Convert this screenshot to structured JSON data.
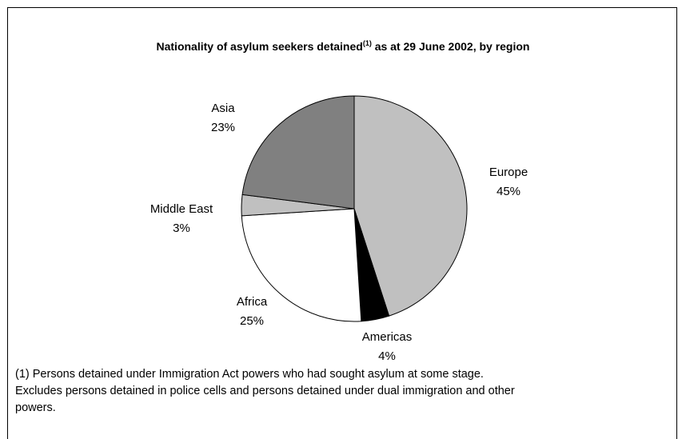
{
  "chart_data": {
    "type": "pie",
    "title": "Nationality of asylum seekers detained",
    "title_superscript": "(1)",
    "title_suffix": " as at 29 June 2002, by region",
    "slices": [
      {
        "label": "Europe",
        "value": 45,
        "value_label": "45%",
        "color": "#c0c0c0"
      },
      {
        "label": "Americas",
        "value": 4,
        "value_label": "4%",
        "color": "#000000"
      },
      {
        "label": "Africa",
        "value": 25,
        "value_label": "25%",
        "color": "#ffffff"
      },
      {
        "label": "Middle East",
        "value": 3,
        "value_label": "3%",
        "color": "#c0c0c0"
      },
      {
        "label": "Asia",
        "value": 23,
        "value_label": "23%",
        "color": "#808080"
      }
    ],
    "start_angle": "12 o'clock",
    "direction": "clockwise",
    "legend": "none"
  },
  "footnote": {
    "line1": "(1) Persons detained under Immigration Act powers who had sought asylum at some stage.",
    "line2": "Excludes persons detained in police cells and persons detained under dual immigration and other",
    "line3": "powers."
  }
}
